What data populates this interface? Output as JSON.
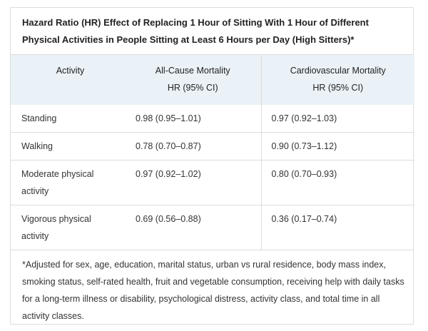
{
  "title": "Hazard Ratio (HR) Effect of Replacing 1 Hour of Sitting With 1 Hour of Different Physical Activities in People Sitting at Least 6 Hours per Day (High Sitters)*",
  "headers": {
    "activity": "Activity",
    "all_cause_line1": "All-Cause Mortality",
    "all_cause_line2": "HR (95% CI)",
    "cardio_line1": "Cardiovascular Mortality",
    "cardio_line2": "HR (95% CI)"
  },
  "rows": [
    {
      "activity": "Standing",
      "all_cause": "0.98 (0.95–1.01)",
      "cardio": "0.97 (0.92–1.03)"
    },
    {
      "activity": "Walking",
      "all_cause": "0.78 (0.70–0.87)",
      "cardio": "0.90 (0.73–1.12)"
    },
    {
      "activity": "Moderate physical activity",
      "all_cause": "0.97 (0.92–1.02)",
      "cardio": "0.80 (0.70–0.93)"
    },
    {
      "activity": "Vigorous physical activity",
      "all_cause": "0.69 (0.56–0.88)",
      "cardio": "0.36 (0.17–0.74)"
    }
  ],
  "footnote": "*Adjusted for sex, age, education, marital status, urban vs rural residence, body mass index, smoking status, self-rated health, fruit and vegetable consumption, receiving help with daily tasks for a long-term illness or disability, psychological distress, activity class, and total time in all activity classes.",
  "colors": {
    "header_bg": "#eaf2f7",
    "border": "#dcdcdc",
    "text": "#222222"
  }
}
